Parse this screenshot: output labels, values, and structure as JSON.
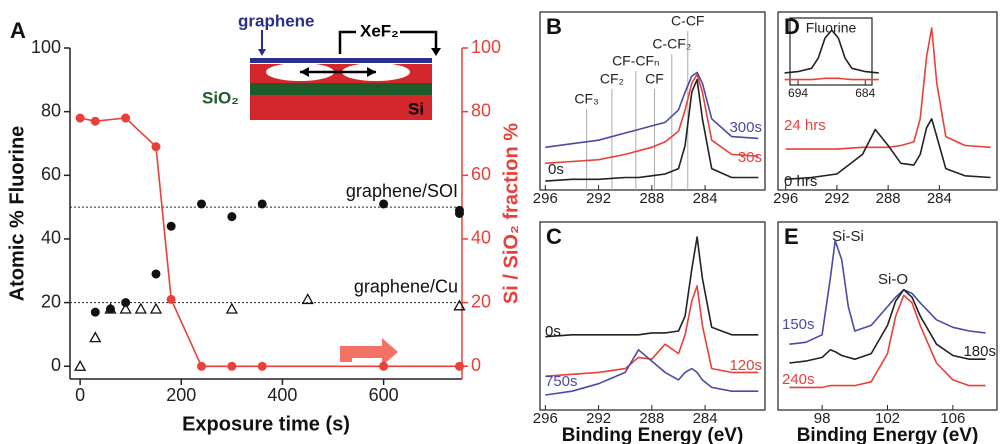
{
  "chart_data": [
    {
      "type": "scatter",
      "panel": "A",
      "x_label": "Exposure time (s)",
      "y_label": "Atomic % Fluorine",
      "y2_label": "Si / SiO₂ fraction %",
      "xlim": [
        -20,
        755
      ],
      "xticks": [
        0,
        200,
        400,
        600
      ],
      "ylim": [
        -4,
        100
      ],
      "yticks": [
        0,
        20,
        40,
        60,
        80,
        100
      ],
      "y2lim": [
        -4,
        100
      ],
      "y2ticks": [
        0,
        20,
        40,
        60,
        80,
        100
      ],
      "reference_lines": [
        50,
        20
      ],
      "series": [
        {
          "name": "graphene/SOI",
          "color": "#111111",
          "marker": "circle",
          "x": [
            30,
            60,
            90,
            150,
            180,
            240,
            300,
            360,
            600,
            750,
            750
          ],
          "values": [
            17,
            18,
            20,
            29,
            44,
            51,
            47,
            51,
            51,
            49,
            48
          ]
        },
        {
          "name": "graphene/Cu",
          "color": "#111111",
          "marker": "triangle-open",
          "x": [
            0,
            30,
            60,
            90,
            120,
            150,
            300,
            450,
            750
          ],
          "values": [
            0,
            9,
            18,
            18,
            18,
            18,
            18,
            21,
            19
          ]
        },
        {
          "color": "#e8403a",
          "marker": "circle",
          "line": true,
          "axis": "y2",
          "x": [
            0,
            30,
            90,
            150,
            180,
            240,
            300,
            360,
            600,
            750
          ],
          "values": [
            78,
            77,
            78,
            69,
            21,
            0,
            0,
            0,
            0,
            0
          ]
        }
      ],
      "inset": {
        "graphene": "graphene",
        "etchant": "XeF₂",
        "oxide": "SiO₂",
        "substrate": "Si"
      }
    },
    {
      "type": "line",
      "panel": "B",
      "xlim": [
        296.4,
        279.5
      ],
      "xticks": [
        296,
        292,
        288,
        284
      ],
      "ylim": [
        0,
        100
      ],
      "x": [
        296,
        294,
        292,
        290,
        289,
        288,
        287,
        286,
        285.5,
        285,
        284.6,
        284.2,
        283.5,
        282,
        280
      ],
      "series": [
        {
          "name": "0s",
          "color": "#222222",
          "values": [
            5,
            6,
            6,
            7,
            7,
            8,
            9,
            12,
            25,
            55,
            62,
            40,
            12,
            7,
            7
          ]
        },
        {
          "name": "30s",
          "color": "#e8403a",
          "values": [
            15,
            16,
            17,
            20,
            22,
            24,
            27,
            33,
            45,
            60,
            65,
            55,
            28,
            20,
            19
          ]
        },
        {
          "name": "300s",
          "color": "#4a4aa8",
          "values": [
            24,
            26,
            28,
            32,
            34,
            36,
            38,
            45,
            55,
            64,
            66,
            60,
            40,
            30,
            29
          ]
        }
      ],
      "annotations": [
        {
          "text": "CF₃",
          "x": 292.9
        },
        {
          "text": "CF₂",
          "x": 291.0
        },
        {
          "text": "CF-CFₙ",
          "x": 289.2
        },
        {
          "text": "CF",
          "x": 287.8
        },
        {
          "text": "C-CF₂",
          "x": 286.5
        },
        {
          "text": "C-CF",
          "x": 285.3
        }
      ]
    },
    {
      "type": "line",
      "panel": "C",
      "x_label": "Binding Energy (eV)",
      "xlim": [
        296.4,
        279.5
      ],
      "xticks": [
        296,
        292,
        288,
        284
      ],
      "ylim": [
        0,
        100
      ],
      "x": [
        296,
        294,
        292,
        290,
        289,
        288,
        287,
        286,
        285.5,
        285,
        284.6,
        284.2,
        283.5,
        282,
        280
      ],
      "series": [
        {
          "name": "0s",
          "color": "#222222",
          "values": [
            39,
            40,
            40,
            40,
            40,
            41,
            41,
            42,
            50,
            75,
            92,
            70,
            44,
            40,
            40
          ]
        },
        {
          "name": "120s",
          "color": "#e8403a",
          "values": [
            18,
            19,
            20,
            22,
            28,
            27,
            35,
            30,
            40,
            58,
            66,
            45,
            22,
            20,
            20
          ]
        },
        {
          "name": "750s",
          "color": "#4a4aa8",
          "values": [
            8,
            10,
            14,
            20,
            32,
            26,
            20,
            16,
            20,
            22,
            20,
            16,
            12,
            10,
            10
          ]
        }
      ]
    },
    {
      "type": "line",
      "panel": "D",
      "xlim": [
        296.6,
        279.5
      ],
      "xticks": [
        296,
        292,
        288,
        284
      ],
      "ylim": [
        0,
        100
      ],
      "x": [
        296,
        294,
        292,
        290,
        289,
        288,
        287,
        286,
        285.5,
        285,
        284.6,
        284.2,
        283.5,
        282,
        280
      ],
      "series": [
        {
          "name": "24 hrs",
          "color": "#e8403a",
          "values": [
            23,
            23,
            23,
            24,
            24,
            24,
            25,
            27,
            40,
            75,
            91,
            60,
            30,
            25,
            24
          ]
        },
        {
          "name": "0 hrs",
          "color": "#222222",
          "values": [
            6,
            7,
            9,
            20,
            34,
            25,
            15,
            14,
            20,
            35,
            40,
            30,
            12,
            8,
            7
          ]
        }
      ],
      "inset": {
        "title": "Fluorine",
        "xlim": [
          695.2,
          683
        ],
        "xticks": [
          694,
          684
        ],
        "ylim": [
          0,
          100
        ],
        "x": [
          696,
          694,
          692,
          691,
          690,
          689,
          688,
          687,
          686,
          684,
          682
        ],
        "series": [
          {
            "color": "#222222",
            "values": [
              18,
              20,
              25,
              40,
              70,
              82,
              70,
              40,
              25,
              20,
              18
            ]
          },
          {
            "color": "#e8403a",
            "values": [
              8,
              8,
              8,
              9,
              10,
              10,
              10,
              9,
              8,
              8,
              8
            ]
          }
        ]
      }
    },
    {
      "type": "line",
      "panel": "E",
      "x_label": "Binding Energy (eV)",
      "xlim": [
        95.3,
        108.7
      ],
      "xticks": [
        98,
        102,
        106
      ],
      "ylim": [
        0,
        100
      ],
      "x": [
        96,
        97,
        98,
        98.5,
        98.8,
        99.2,
        99.6,
        100,
        101,
        102,
        102.5,
        103,
        103.5,
        104,
        105,
        106,
        107,
        108
      ],
      "series": [
        {
          "name": "150s",
          "color": "#4a4aa8",
          "values": [
            35,
            36,
            40,
            70,
            90,
            80,
            55,
            42,
            45,
            55,
            60,
            64,
            62,
            57,
            48,
            44,
            42,
            41
          ]
        },
        {
          "name": "180s",
          "color": "#222222",
          "values": [
            25,
            26,
            28,
            32,
            31,
            29,
            28,
            27,
            30,
            45,
            58,
            64,
            60,
            50,
            35,
            29,
            27,
            27
          ]
        },
        {
          "name": "240s",
          "color": "#e8403a",
          "values": [
            12,
            12,
            12,
            13,
            13,
            13,
            13,
            13,
            15,
            30,
            50,
            61,
            57,
            45,
            25,
            16,
            13,
            13
          ]
        }
      ],
      "annotations": [
        {
          "text": "Si-Si"
        },
        {
          "text": "Si-O"
        }
      ]
    }
  ]
}
